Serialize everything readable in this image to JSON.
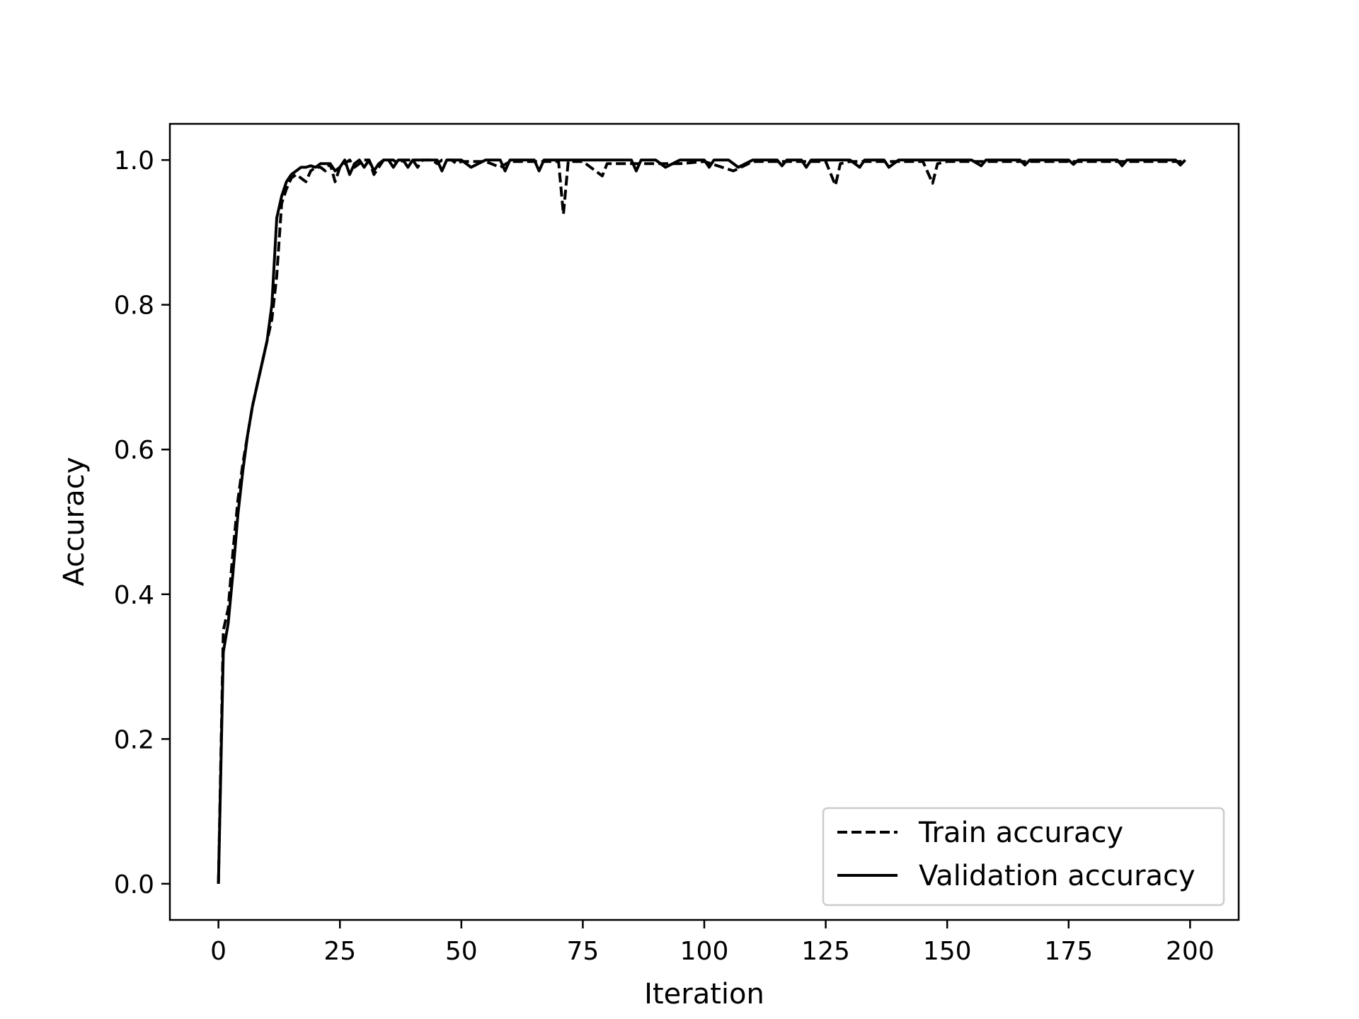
{
  "chart_data": {
    "type": "line",
    "title": "",
    "xlabel": "Iteration",
    "ylabel": "Accuracy",
    "xlim": [
      -10,
      210
    ],
    "ylim": [
      -0.05,
      1.05
    ],
    "x_ticks": [
      0,
      25,
      50,
      75,
      100,
      125,
      150,
      175,
      200
    ],
    "y_ticks": [
      0.0,
      0.2,
      0.4,
      0.6,
      0.8,
      1.0
    ],
    "x_tick_labels": [
      "0",
      "25",
      "50",
      "75",
      "100",
      "125",
      "150",
      "175",
      "200"
    ],
    "y_tick_labels": [
      "0.0",
      "0.2",
      "0.4",
      "0.6",
      "0.8",
      "1.0"
    ],
    "grid": false,
    "legend_position": "lower-right",
    "series": [
      {
        "name": "Train accuracy",
        "line_style": "dashed",
        "color": "#000000",
        "x": [
          0,
          1,
          2,
          3,
          4,
          5,
          6,
          7,
          8,
          9,
          10,
          11,
          12,
          13,
          14,
          15,
          16,
          17,
          18,
          19,
          20,
          21,
          22,
          23,
          24,
          25,
          26,
          27,
          28,
          29,
          30,
          31,
          32,
          33,
          34,
          35,
          36,
          37,
          38,
          39,
          40,
          41,
          42,
          43,
          44,
          45,
          46,
          47,
          48,
          49,
          50,
          55,
          58,
          60,
          65,
          70,
          71,
          72,
          75,
          79,
          80,
          85,
          90,
          95,
          100,
          106,
          110,
          115,
          120,
          125,
          127,
          128,
          130,
          135,
          140,
          145,
          147,
          148,
          150,
          155,
          160,
          165,
          170,
          175,
          180,
          185,
          190,
          195,
          198,
          199
        ],
        "y": [
          0.0,
          0.35,
          0.38,
          0.46,
          0.53,
          0.58,
          0.62,
          0.66,
          0.69,
          0.72,
          0.75,
          0.78,
          0.84,
          0.94,
          0.96,
          0.975,
          0.98,
          0.975,
          0.97,
          0.985,
          0.99,
          0.99,
          0.985,
          0.995,
          0.97,
          0.99,
          0.995,
          1.0,
          0.99,
          0.995,
          1.0,
          1.0,
          0.98,
          0.99,
          1.0,
          1.0,
          1.0,
          0.995,
          1.0,
          1.0,
          1.0,
          0.99,
          1.0,
          1.0,
          1.0,
          0.995,
          1.0,
          1.0,
          1.0,
          0.995,
          0.998,
          0.998,
          0.99,
          0.998,
          0.998,
          0.998,
          0.925,
          0.998,
          0.998,
          0.978,
          0.995,
          0.995,
          0.995,
          0.995,
          0.998,
          0.985,
          0.998,
          0.998,
          0.998,
          0.998,
          0.965,
          0.995,
          0.998,
          0.998,
          0.998,
          0.998,
          0.968,
          0.995,
          0.998,
          0.998,
          0.998,
          0.998,
          0.998,
          0.998,
          0.998,
          0.998,
          0.998,
          0.998,
          0.998,
          1.0
        ]
      },
      {
        "name": "Validation accuracy",
        "line_style": "solid",
        "color": "#000000",
        "x": [
          0,
          1,
          2,
          3,
          4,
          5,
          6,
          7,
          8,
          9,
          10,
          11,
          12,
          13,
          14,
          15,
          16,
          17,
          18,
          19,
          20,
          21,
          22,
          23,
          24,
          25,
          26,
          27,
          28,
          29,
          30,
          31,
          32,
          33,
          34,
          35,
          36,
          37,
          38,
          39,
          40,
          45,
          46,
          47,
          50,
          52,
          55,
          58,
          59,
          60,
          65,
          66,
          67,
          70,
          75,
          80,
          85,
          86,
          87,
          90,
          92,
          95,
          100,
          101,
          102,
          105,
          107,
          110,
          115,
          116,
          117,
          120,
          121,
          122,
          125,
          130,
          132,
          133,
          135,
          137,
          138,
          140,
          145,
          150,
          155,
          157,
          158,
          160,
          165,
          166,
          167,
          170,
          175,
          176,
          177,
          180,
          185,
          186,
          187,
          190,
          195,
          197,
          198,
          199
        ],
        "y": [
          0.0,
          0.32,
          0.36,
          0.43,
          0.51,
          0.57,
          0.62,
          0.66,
          0.69,
          0.72,
          0.75,
          0.8,
          0.92,
          0.95,
          0.97,
          0.98,
          0.985,
          0.99,
          0.99,
          0.992,
          0.99,
          0.995,
          0.995,
          0.995,
          0.985,
          0.99,
          1.0,
          0.98,
          0.995,
          1.0,
          0.99,
          1.0,
          0.985,
          0.995,
          1.0,
          1.0,
          0.99,
          1.0,
          1.0,
          0.99,
          1.0,
          1.0,
          0.985,
          1.0,
          1.0,
          0.99,
          1.0,
          1.0,
          0.985,
          1.0,
          1.0,
          0.985,
          1.0,
          1.0,
          1.0,
          1.0,
          1.0,
          0.985,
          1.0,
          1.0,
          0.99,
          1.0,
          1.0,
          0.99,
          1.0,
          1.0,
          0.99,
          1.0,
          1.0,
          0.992,
          1.0,
          1.0,
          0.99,
          1.0,
          1.0,
          1.0,
          0.99,
          1.0,
          1.0,
          1.0,
          0.99,
          1.0,
          1.0,
          1.0,
          1.0,
          0.992,
          1.0,
          1.0,
          1.0,
          0.993,
          1.0,
          1.0,
          1.0,
          0.994,
          1.0,
          1.0,
          1.0,
          0.992,
          1.0,
          1.0,
          1.0,
          1.0,
          0.993,
          1.0
        ]
      }
    ]
  }
}
